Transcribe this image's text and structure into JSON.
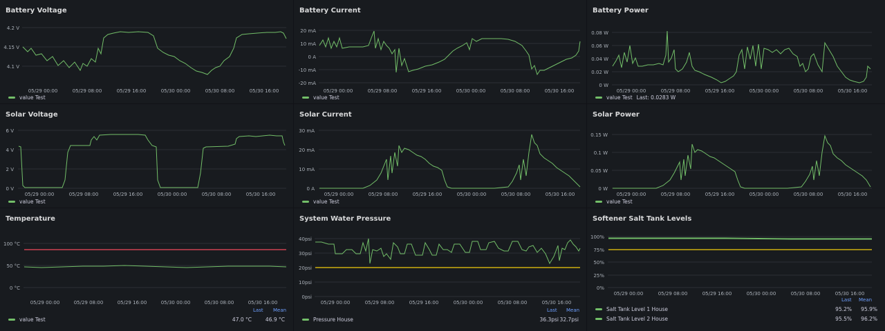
{
  "colors": {
    "series": "#73bf69",
    "threshold_red": "#f2495c",
    "threshold_yellow": "#f2cc0c",
    "accent": "#6e9fff"
  },
  "panels": {
    "battery_voltage": {
      "title": "Battery Voltage",
      "y_ticks": [
        "4.2 V",
        "4.15 V",
        "4.1 V"
      ],
      "x_ticks": [
        "05/29 00:00",
        "05/29 08:00",
        "05/29 16:00",
        "05/30 00:00",
        "05/30 08:00",
        "05/30 16:00"
      ],
      "legend": "value Test"
    },
    "battery_current": {
      "title": "Battery Current",
      "y_ticks": [
        "20 mA",
        "10 mA",
        "0 A",
        "-10 mA",
        "-20 mA"
      ],
      "x_ticks": [
        "05/29 00:00",
        "05/29 08:00",
        "05/29 16:00",
        "05/30 00:00",
        "05/30 08:00",
        "05/30 16:00"
      ],
      "legend": "value Test"
    },
    "battery_power": {
      "title": "Battery Power",
      "y_ticks": [
        "0.08 W",
        "0.06 W",
        "0.04 W",
        "0.02 W",
        "0 W"
      ],
      "x_ticks": [
        "05/29 00:00",
        "05/29 08:00",
        "05/29 16:00",
        "05/30 00:00",
        "05/30 08:00",
        "05/30 16:00"
      ],
      "legend": "value Test",
      "legend_last": "Last: 0.0283 W"
    },
    "solar_voltage": {
      "title": "Solar Voltage",
      "y_ticks": [
        "6 V",
        "4 V",
        "2 V",
        "0 V"
      ],
      "x_ticks": [
        "05/29 00:00",
        "05/29 08:00",
        "05/29 16:00",
        "05/30 00:00",
        "05/30 08:00",
        "05/30 16:00"
      ],
      "legend": "value Test"
    },
    "solar_current": {
      "title": "Solar Current",
      "y_ticks": [
        "30 mA",
        "20 mA",
        "10 mA",
        "0 A"
      ],
      "x_ticks": [
        "05/29 00:00",
        "05/29 08:00",
        "05/29 16:00",
        "05/30 00:00",
        "05/30 08:00",
        "05/30 16:00"
      ],
      "legend": "value Test"
    },
    "solar_power": {
      "title": "Solar Power",
      "y_ticks": [
        "0.15 W",
        "0.1 W",
        "0.05 W",
        "0 W"
      ],
      "x_ticks": [
        "05/29 00:00",
        "05/29 08:00",
        "05/29 16:00",
        "05/30 00:00",
        "05/30 08:00",
        "05/30 16:00"
      ],
      "legend": "value Test"
    },
    "temperature": {
      "title": "Temperature",
      "y_ticks": [
        "100 °C",
        "50 °C",
        "0 °C"
      ],
      "x_ticks": [
        "05/29 00:00",
        "05/29 08:00",
        "05/29 16:00",
        "05/30 00:00",
        "05/30 08:00",
        "05/30 16:00"
      ],
      "legend": "value Test",
      "hdr_last": "Last",
      "hdr_mean": "Mean",
      "last": "47.0 °C",
      "mean": "46.9 °C"
    },
    "water_pressure": {
      "title": "System Water Pressure",
      "y_ticks": [
        "40psi",
        "30psi",
        "20psi",
        "10psi",
        "0psi"
      ],
      "x_ticks": [
        "05/29 00:00",
        "05/29 08:00",
        "05/29 16:00",
        "05/30 00:00",
        "05/30 08:00",
        "05/30 16:00"
      ],
      "legend": "Pressure House",
      "hdr_last": "Last",
      "hdr_mean": "Mean",
      "last": "36.3psi",
      "mean": "32.7psi"
    },
    "salt_tank": {
      "title": "Softener Salt Tank Levels",
      "y_ticks": [
        "100%",
        "75%",
        "50%",
        "25%",
        "0%"
      ],
      "x_ticks": [
        "05/29 00:00",
        "05/29 08:00",
        "05/29 16:00",
        "05/30 00:00",
        "05/30 08:00",
        "05/30 16:00"
      ],
      "hdr_last": "Last",
      "hdr_mean": "Mean",
      "legend1": "Salt Tank Level 1 House",
      "last1": "95.2%",
      "mean1": "95.9%",
      "legend2": "Salt Tank Level 2 House",
      "last2": "95.5%",
      "mean2": "96.2%"
    }
  },
  "chart_data": [
    {
      "type": "line",
      "title": "Battery Voltage",
      "x_range": [
        "05/28 ~20:00",
        "05/30 ~20:00"
      ],
      "ylim": [
        4.08,
        4.22
      ],
      "series": [
        {
          "name": "value Test",
          "shape": [
            [
              0,
              4.14
            ],
            [
              0.03,
              4.14
            ],
            [
              0.08,
              4.12
            ],
            [
              0.15,
              4.1
            ],
            [
              0.2,
              4.11
            ],
            [
              0.25,
              4.14
            ],
            [
              0.3,
              4.18
            ],
            [
              0.4,
              4.19
            ],
            [
              0.47,
              4.19
            ],
            [
              0.5,
              4.18
            ],
            [
              0.55,
              4.14
            ],
            [
              0.6,
              4.12
            ],
            [
              0.68,
              4.1
            ],
            [
              0.73,
              4.09
            ],
            [
              0.77,
              4.1
            ],
            [
              0.8,
              4.13
            ],
            [
              0.85,
              4.17
            ],
            [
              0.95,
              4.19
            ],
            [
              1,
              4.17
            ]
          ]
        }
      ]
    },
    {
      "type": "line",
      "title": "Battery Current",
      "ylim": [
        -20,
        20
      ],
      "series": [
        {
          "name": "value Test",
          "shape": [
            [
              0,
              8
            ],
            [
              0.15,
              8
            ],
            [
              0.2,
              15
            ],
            [
              0.3,
              10
            ],
            [
              0.34,
              -2
            ],
            [
              0.4,
              0
            ],
            [
              0.5,
              5
            ],
            [
              0.55,
              10
            ],
            [
              0.7,
              13
            ],
            [
              0.8,
              12
            ],
            [
              0.84,
              -10
            ],
            [
              0.9,
              0
            ],
            [
              0.97,
              5
            ],
            [
              1,
              12
            ]
          ]
        }
      ]
    },
    {
      "type": "line",
      "title": "Battery Power",
      "ylim": [
        0,
        0.08
      ],
      "series": [
        {
          "name": "value Test",
          "shape": [
            [
              0,
              0.03
            ],
            [
              0.05,
              0.04
            ],
            [
              0.1,
              0.06
            ],
            [
              0.18,
              0.03
            ],
            [
              0.25,
              0.04
            ],
            [
              0.3,
              0.06
            ],
            [
              0.35,
              0.03
            ],
            [
              0.45,
              0.02
            ],
            [
              0.5,
              0.01
            ],
            [
              0.55,
              0.04
            ],
            [
              0.6,
              0.05
            ],
            [
              0.7,
              0.05
            ],
            [
              0.77,
              0.04
            ],
            [
              0.82,
              0.06
            ],
            [
              0.85,
              0.04
            ],
            [
              0.9,
              0.02
            ],
            [
              0.95,
              0.005
            ],
            [
              1,
              0.0283
            ]
          ]
        }
      ]
    }
  ]
}
